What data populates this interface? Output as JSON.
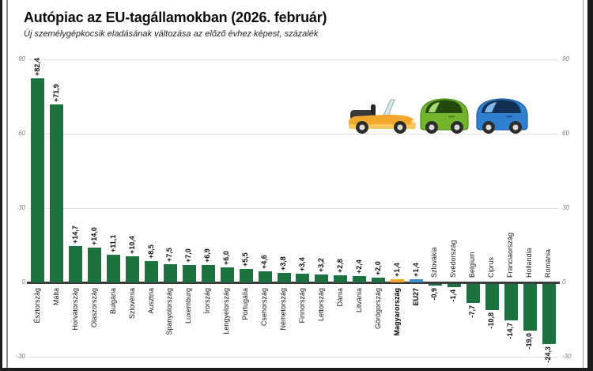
{
  "header": {
    "title": "Autópiac az EU-tagállamokban (2026. február)",
    "subtitle": "Új személygépkocsik eladásának változása az előző évhez képest, százalék"
  },
  "chart_data": {
    "type": "bar",
    "title": "Autópiac az EU-tagállamokban (2026. február)",
    "subtitle": "Új személygépkocsik eladásának változása az előző évhez képest, százalék",
    "unit": "percent change vs previous year",
    "ylim": [
      -30,
      90
    ],
    "yticks": [
      "90",
      "60",
      "30",
      "0",
      "-30"
    ],
    "ytick_values": [
      90,
      60,
      30,
      0,
      -30
    ],
    "grid": true,
    "legend": "none",
    "bars": [
      {
        "name": "Észtország",
        "value": 82.4,
        "label": "+82,4",
        "color": "green",
        "emph": false
      },
      {
        "name": "Málta",
        "value": 71.9,
        "label": "+71,9",
        "color": "green",
        "emph": false
      },
      {
        "name": "Horvátország",
        "value": 14.7,
        "label": "+14,7",
        "color": "green",
        "emph": false
      },
      {
        "name": "Olaszország",
        "value": 14.0,
        "label": "+14,0",
        "color": "green",
        "emph": false
      },
      {
        "name": "Bulgária",
        "value": 11.1,
        "label": "+11,1",
        "color": "green",
        "emph": false
      },
      {
        "name": "Szlovénia",
        "value": 10.4,
        "label": "+10,4",
        "color": "green",
        "emph": false
      },
      {
        "name": "Ausztria",
        "value": 8.5,
        "label": "+8,5",
        "color": "green",
        "emph": false
      },
      {
        "name": "Spanyolország",
        "value": 7.5,
        "label": "+7,5",
        "color": "green",
        "emph": false
      },
      {
        "name": "Luxemburg",
        "value": 7.0,
        "label": "+7,0",
        "color": "green",
        "emph": false
      },
      {
        "name": "Írország",
        "value": 6.9,
        "label": "+6,9",
        "color": "green",
        "emph": false
      },
      {
        "name": "Lengyelország",
        "value": 6.0,
        "label": "+6,0",
        "color": "green",
        "emph": false
      },
      {
        "name": "Portugália",
        "value": 5.5,
        "label": "+5,5",
        "color": "green",
        "emph": false
      },
      {
        "name": "Csehország",
        "value": 4.6,
        "label": "+4,6",
        "color": "green",
        "emph": false
      },
      {
        "name": "Németország",
        "value": 3.8,
        "label": "+3,8",
        "color": "green",
        "emph": false
      },
      {
        "name": "Finnország",
        "value": 3.4,
        "label": "+3,4",
        "color": "green",
        "emph": false
      },
      {
        "name": "Lettország",
        "value": 3.2,
        "label": "+3,2",
        "color": "green",
        "emph": false
      },
      {
        "name": "Dánia",
        "value": 2.8,
        "label": "+2,8",
        "color": "green",
        "emph": false
      },
      {
        "name": "Litvánia",
        "value": 2.4,
        "label": "+2,4",
        "color": "green",
        "emph": false
      },
      {
        "name": "Görögország",
        "value": 2.0,
        "label": "+2,0",
        "color": "green",
        "emph": false
      },
      {
        "name": "Magyarország",
        "value": 1.4,
        "label": "+1,4",
        "color": "orange",
        "emph": true
      },
      {
        "name": "EU27",
        "value": 1.4,
        "label": "+1,4",
        "color": "blue",
        "emph": true
      },
      {
        "name": "Szlovákia",
        "value": -0.9,
        "label": "-0,9",
        "color": "green",
        "emph": false
      },
      {
        "name": "Svédország",
        "value": -1.4,
        "label": "-1,4",
        "color": "green",
        "emph": false
      },
      {
        "name": "Belgium",
        "value": -7.7,
        "label": "-7,7",
        "color": "green",
        "emph": false
      },
      {
        "name": "Ciprus",
        "value": -10.8,
        "label": "-10,8",
        "color": "green",
        "emph": false
      },
      {
        "name": "Franciaország",
        "value": -14.7,
        "label": "-14,7",
        "color": "green",
        "emph": false
      },
      {
        "name": "Hollandia",
        "value": -19.0,
        "label": "-19,0",
        "color": "green",
        "emph": false
      },
      {
        "name": "Románia",
        "value": -24.3,
        "label": "-24,3",
        "color": "green",
        "emph": false
      }
    ]
  },
  "colors": {
    "green": "#1d7340",
    "orange": "#f0a829",
    "blue": "#418bcd",
    "grid": "#e0e0e0",
    "axis": "#3c3c3c",
    "tick_text": "#7d7d7d"
  },
  "illustration": {
    "cars": [
      "convertible-car-icon",
      "green-car-icon",
      "blue-car-icon"
    ]
  }
}
